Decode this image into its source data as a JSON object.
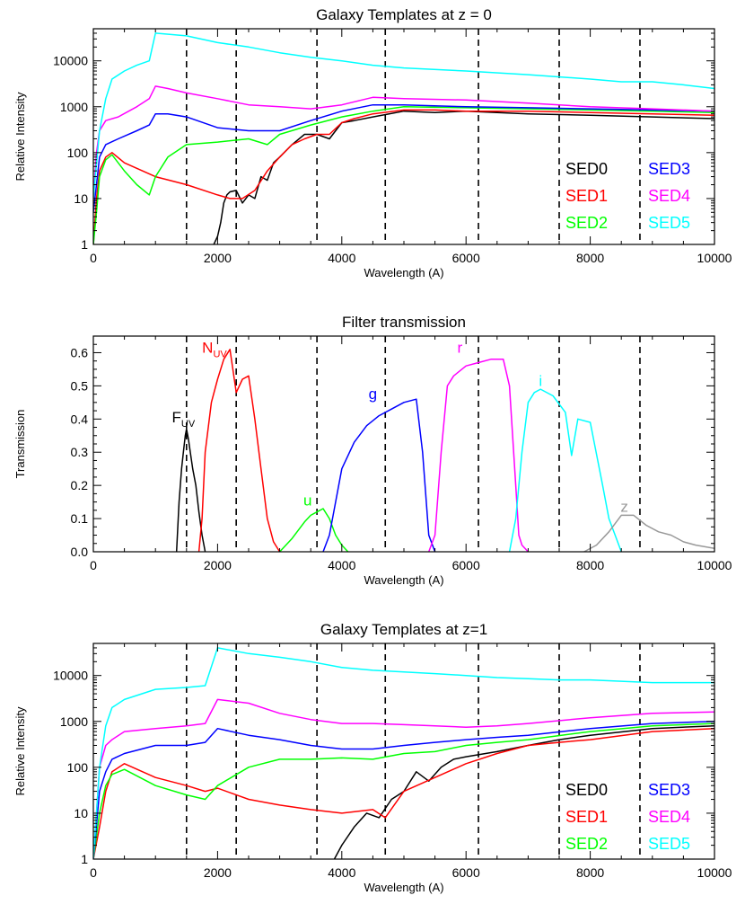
{
  "chart_data": [
    {
      "type": "line",
      "title": "Galaxy Templates at z = 0",
      "xlabel": "Wavelength (A)",
      "ylabel": "Relative Intensity",
      "xlim": [
        0,
        10000
      ],
      "ylim": [
        1,
        50000
      ],
      "yscale": "log",
      "xticks": [
        "0",
        "2000",
        "4000",
        "6000",
        "8000",
        "10000"
      ],
      "yticks": [
        {
          "value": 1,
          "label": "1"
        },
        {
          "value": 10,
          "label": "10"
        },
        {
          "value": 100,
          "label": "100"
        },
        {
          "value": 1000,
          "label": "1000"
        },
        {
          "value": 10000,
          "label": "10000"
        }
      ],
      "vlines": [
        1500,
        2300,
        3600,
        4700,
        6200,
        7500,
        8800
      ],
      "legend": {
        "placement": "bottom-right",
        "columns": 2
      },
      "series": [
        {
          "name": "SED0",
          "color": "#000000",
          "x": [
            1940,
            2000,
            2050,
            2100,
            2150,
            2200,
            2300,
            2400,
            2500,
            2600,
            2700,
            2800,
            2900,
            3000,
            3200,
            3400,
            3600,
            3800,
            4000,
            4200,
            4500,
            5000,
            5500,
            6000,
            7000,
            8000,
            9000,
            10000
          ],
          "y": [
            1,
            1.5,
            3,
            8,
            12,
            14,
            15,
            8,
            12,
            10,
            30,
            25,
            60,
            80,
            150,
            250,
            250,
            200,
            450,
            500,
            600,
            800,
            750,
            800,
            700,
            650,
            600,
            550
          ]
        },
        {
          "name": "SED1",
          "color": "#ff0000",
          "x": [
            0,
            50,
            100,
            200,
            300,
            500,
            1000,
            1500,
            2000,
            2200,
            2400,
            2600,
            2800,
            3000,
            3200,
            3400,
            3600,
            3800,
            4000,
            4200,
            4500,
            5000,
            5500,
            6000,
            7000,
            8000,
            9000,
            10000
          ],
          "y": [
            1,
            10,
            40,
            80,
            100,
            60,
            30,
            20,
            12,
            10,
            10,
            15,
            40,
            80,
            150,
            200,
            250,
            250,
            450,
            550,
            700,
            850,
            850,
            800,
            800,
            750,
            700,
            650
          ]
        },
        {
          "name": "SED2",
          "color": "#00ff00",
          "x": [
            0,
            50,
            100,
            200,
            300,
            500,
            700,
            900,
            1000,
            1200,
            1500,
            2000,
            2500,
            2800,
            3000,
            3500,
            4000,
            4500,
            5000,
            6000,
            7000,
            8000,
            9000,
            10000
          ],
          "y": [
            1,
            5,
            30,
            70,
            90,
            40,
            20,
            12,
            30,
            80,
            150,
            170,
            200,
            150,
            250,
            400,
            600,
            800,
            1000,
            950,
            900,
            850,
            800,
            750
          ]
        },
        {
          "name": "SED3",
          "color": "#0000ff",
          "x": [
            0,
            50,
            100,
            200,
            400,
            700,
            900,
            1000,
            1200,
            1500,
            2000,
            2500,
            3000,
            3500,
            4000,
            4500,
            5000,
            6000,
            7000,
            8000,
            9000,
            10000
          ],
          "y": [
            5,
            20,
            80,
            150,
            200,
            300,
            400,
            700,
            700,
            600,
            350,
            300,
            300,
            500,
            800,
            1100,
            1100,
            1000,
            950,
            900,
            850,
            800
          ]
        },
        {
          "name": "SED4",
          "color": "#ff00ff",
          "x": [
            0,
            50,
            100,
            200,
            400,
            700,
            900,
            1000,
            1200,
            1500,
            2000,
            2500,
            3000,
            3500,
            4000,
            4500,
            5000,
            6000,
            7000,
            8000,
            9000,
            10000
          ],
          "y": [
            10,
            100,
            300,
            500,
            600,
            1000,
            1500,
            2800,
            2500,
            2000,
            1500,
            1100,
            1000,
            900,
            1100,
            1600,
            1500,
            1400,
            1200,
            1000,
            900,
            800
          ]
        },
        {
          "name": "SED5",
          "color": "#00ffff",
          "x": [
            0,
            100,
            200,
            300,
            500,
            700,
            900,
            1000,
            1500,
            2000,
            2500,
            3000,
            3500,
            4000,
            4500,
            5000,
            6000,
            7000,
            8000,
            8500,
            9000,
            9500,
            10000
          ],
          "y": [
            10,
            300,
            1500,
            4000,
            6000,
            8000,
            10000,
            40000,
            35000,
            25000,
            20000,
            15000,
            12000,
            10000,
            8000,
            7000,
            6000,
            5000,
            4000,
            3500,
            3500,
            3000,
            2500
          ]
        }
      ]
    },
    {
      "type": "line",
      "title": "Filter transmission",
      "xlabel": "Wavelength (A)",
      "ylabel": "Transmission",
      "xlim": [
        0,
        10000
      ],
      "ylim": [
        0,
        0.65
      ],
      "xticks": [
        "0",
        "2000",
        "4000",
        "6000",
        "8000",
        "10000"
      ],
      "yticks": [
        {
          "value": 0,
          "label": "0.0"
        },
        {
          "value": 0.1,
          "label": "0.1"
        },
        {
          "value": 0.2,
          "label": "0.2"
        },
        {
          "value": 0.3,
          "label": "0.3"
        },
        {
          "value": 0.4,
          "label": "0.4"
        },
        {
          "value": 0.5,
          "label": "0.5"
        },
        {
          "value": 0.6,
          "label": "0.6"
        }
      ],
      "vlines": [
        1500,
        2300,
        3600,
        4700,
        6200,
        7500,
        8800
      ],
      "series": [
        {
          "label": "F",
          "subscript": "UV",
          "color": "#000000",
          "label_at": [
            1450,
            0.39
          ],
          "x": [
            1340,
            1380,
            1420,
            1450,
            1480,
            1500,
            1530,
            1560,
            1600,
            1650,
            1700,
            1750,
            1800
          ],
          "y": [
            0,
            0.15,
            0.25,
            0.3,
            0.35,
            0.37,
            0.34,
            0.3,
            0.25,
            0.2,
            0.12,
            0.05,
            0
          ]
        },
        {
          "label": "N",
          "subscript": "UV",
          "color": "#ff0000",
          "label_at": [
            1950,
            0.6
          ],
          "x": [
            1700,
            1750,
            1800,
            1900,
            2000,
            2100,
            2200,
            2300,
            2400,
            2500,
            2600,
            2700,
            2800,
            2900,
            3000
          ],
          "y": [
            0,
            0.1,
            0.3,
            0.45,
            0.52,
            0.58,
            0.61,
            0.48,
            0.52,
            0.53,
            0.4,
            0.25,
            0.1,
            0.03,
            0
          ]
        },
        {
          "label": "u",
          "color": "#00ff00",
          "label_at": [
            3450,
            0.14
          ],
          "x": [
            3000,
            3200,
            3400,
            3500,
            3600,
            3700,
            3800,
            3900,
            4000,
            4100
          ],
          "y": [
            0,
            0.04,
            0.09,
            0.11,
            0.12,
            0.13,
            0.1,
            0.05,
            0.02,
            0
          ]
        },
        {
          "label": "g",
          "color": "#0000ff",
          "label_at": [
            4500,
            0.46
          ],
          "x": [
            3700,
            3800,
            3900,
            4000,
            4200,
            4400,
            4600,
            4800,
            5000,
            5200,
            5300,
            5400,
            5500
          ],
          "y": [
            0,
            0.05,
            0.15,
            0.25,
            0.33,
            0.38,
            0.41,
            0.43,
            0.45,
            0.46,
            0.3,
            0.05,
            0
          ]
        },
        {
          "label": "r",
          "color": "#ff00ff",
          "label_at": [
            5900,
            0.6
          ],
          "x": [
            5400,
            5500,
            5600,
            5700,
            5800,
            6000,
            6200,
            6400,
            6600,
            6700,
            6800,
            6850,
            6900,
            7000
          ],
          "y": [
            0,
            0.05,
            0.3,
            0.5,
            0.53,
            0.56,
            0.57,
            0.58,
            0.58,
            0.5,
            0.2,
            0.05,
            0.02,
            0
          ]
        },
        {
          "label": "i",
          "color": "#00ffff",
          "label_at": [
            7200,
            0.5
          ],
          "x": [
            6700,
            6800,
            6900,
            7000,
            7100,
            7200,
            7400,
            7600,
            7700,
            7800,
            8000,
            8200,
            8300,
            8400,
            8500
          ],
          "y": [
            0,
            0.1,
            0.3,
            0.45,
            0.48,
            0.49,
            0.47,
            0.42,
            0.29,
            0.4,
            0.39,
            0.2,
            0.1,
            0.05,
            0
          ]
        },
        {
          "label": "z",
          "color": "#999999",
          "label_at": [
            8550,
            0.12
          ],
          "x": [
            7900,
            8100,
            8300,
            8500,
            8700,
            8900,
            9100,
            9300,
            9500,
            9700,
            10000
          ],
          "y": [
            0,
            0.02,
            0.06,
            0.11,
            0.11,
            0.08,
            0.06,
            0.05,
            0.03,
            0.02,
            0.01
          ]
        }
      ]
    },
    {
      "type": "line",
      "title": "Galaxy Templates at z=1",
      "xlabel": "Wavelength (A)",
      "ylabel": "Relative Intensity",
      "xlim": [
        0,
        10000
      ],
      "ylim": [
        1,
        50000
      ],
      "yscale": "log",
      "xticks": [
        "0",
        "2000",
        "4000",
        "6000",
        "8000",
        "10000"
      ],
      "yticks": [
        {
          "value": 1,
          "label": "1"
        },
        {
          "value": 10,
          "label": "10"
        },
        {
          "value": 100,
          "label": "100"
        },
        {
          "value": 1000,
          "label": "1000"
        },
        {
          "value": 10000,
          "label": "10000"
        }
      ],
      "vlines": [
        1500,
        2300,
        3600,
        4700,
        6200,
        7500,
        8800
      ],
      "legend": {
        "placement": "bottom-right",
        "columns": 2
      },
      "series": [
        {
          "name": "SED0",
          "color": "#000000",
          "x": [
            3880,
            4000,
            4200,
            4400,
            4600,
            4800,
            5000,
            5200,
            5400,
            5600,
            5800,
            6000,
            6500,
            7000,
            7500,
            8000,
            9000,
            10000
          ],
          "y": [
            1,
            2,
            5,
            10,
            8,
            20,
            30,
            80,
            50,
            100,
            150,
            170,
            220,
            300,
            400,
            500,
            700,
            800
          ]
        },
        {
          "name": "SED1",
          "color": "#ff0000",
          "x": [
            0,
            100,
            200,
            300,
            500,
            1000,
            1500,
            1800,
            2000,
            2500,
            3000,
            3500,
            4000,
            4500,
            4700,
            5000,
            5500,
            6000,
            6500,
            7000,
            7500,
            8000,
            9000,
            10000
          ],
          "y": [
            1,
            5,
            30,
            80,
            120,
            60,
            40,
            30,
            35,
            20,
            15,
            12,
            10,
            12,
            8,
            30,
            60,
            120,
            200,
            300,
            350,
            400,
            600,
            700
          ]
        },
        {
          "name": "SED2",
          "color": "#00ff00",
          "x": [
            0,
            100,
            200,
            300,
            500,
            1000,
            1500,
            1800,
            2000,
            2500,
            3000,
            3500,
            4000,
            4500,
            5000,
            5500,
            6000,
            6500,
            7000,
            8000,
            9000,
            10000
          ],
          "y": [
            1,
            10,
            40,
            70,
            90,
            40,
            25,
            20,
            40,
            100,
            150,
            150,
            160,
            150,
            200,
            220,
            300,
            350,
            400,
            600,
            800,
            900
          ]
        },
        {
          "name": "SED3",
          "color": "#0000ff",
          "x": [
            0,
            100,
            200,
            300,
            500,
            1000,
            1500,
            1800,
            2000,
            2500,
            3000,
            3500,
            4000,
            4500,
            5000,
            5500,
            6000,
            6500,
            7000,
            8000,
            9000,
            10000
          ],
          "y": [
            1,
            30,
            80,
            150,
            200,
            300,
            300,
            350,
            700,
            500,
            400,
            300,
            250,
            250,
            300,
            350,
            400,
            450,
            500,
            700,
            900,
            1000
          ]
        },
        {
          "name": "SED4",
          "color": "#ff00ff",
          "x": [
            0,
            100,
            200,
            300,
            500,
            1000,
            1500,
            1800,
            2000,
            2500,
            3000,
            3500,
            4000,
            4500,
            5000,
            5500,
            6000,
            6500,
            7000,
            8000,
            9000,
            10000
          ],
          "y": [
            1,
            100,
            300,
            400,
            600,
            700,
            800,
            900,
            3000,
            2500,
            1500,
            1100,
            900,
            900,
            850,
            800,
            750,
            800,
            900,
            1200,
            1500,
            1600
          ]
        },
        {
          "name": "SED5",
          "color": "#00ffff",
          "x": [
            0,
            100,
            200,
            300,
            500,
            1000,
            1500,
            1800,
            2000,
            2500,
            3000,
            3500,
            4000,
            4500,
            5000,
            5500,
            6000,
            6500,
            7000,
            7500,
            8000,
            9000,
            10000
          ],
          "y": [
            1,
            100,
            800,
            2000,
            3000,
            5000,
            5500,
            6000,
            40000,
            30000,
            25000,
            20000,
            15000,
            13000,
            12000,
            11000,
            10000,
            9000,
            8500,
            8000,
            8000,
            7000,
            7000
          ]
        }
      ]
    }
  ]
}
